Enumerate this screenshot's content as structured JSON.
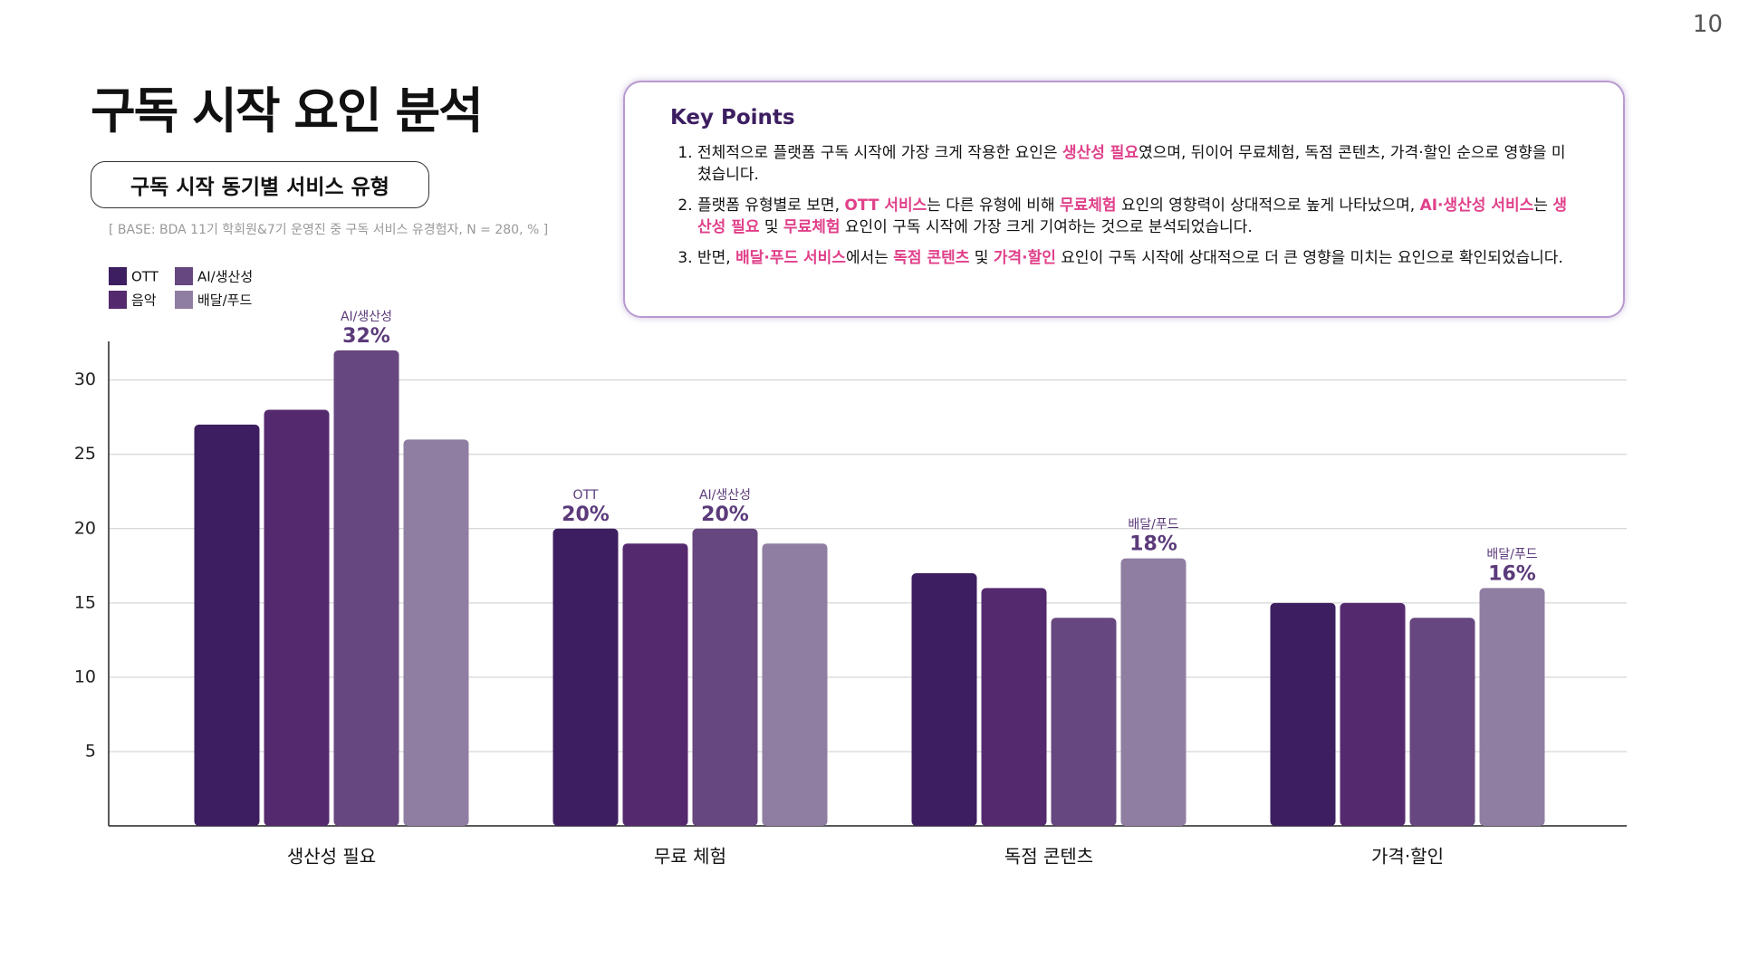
{
  "page_number": "10",
  "title": "구독 시작 요인 분석",
  "subtitle": "구독 시작 동기별 서비스 유형",
  "base_note": "[ BASE: BDA 11기 학회원&7기 운영진 중 구독 서비스 유경험자, N = 280, % ]",
  "key_points": {
    "title": "Key Points",
    "items": [
      [
        {
          "text": "전체적으로 플랫폼 구독 시작에 가장 크게 작용한 요인은 ",
          "highlight": false
        },
        {
          "text": "생산성 필요",
          "highlight": true
        },
        {
          "text": "였으며, 뒤이어 무료체험, 독점 콘텐츠, 가격·할인 순으로 영향을 미쳤습니다.",
          "highlight": false
        }
      ],
      [
        {
          "text": "플랫폼 유형별로 보면, ",
          "highlight": false
        },
        {
          "text": "OTT 서비스",
          "highlight": true
        },
        {
          "text": "는 다른 유형에 비해 ",
          "highlight": false
        },
        {
          "text": "무료체험",
          "highlight": true
        },
        {
          "text": " 요인의 영향력이 상대적으로 높게 나타났으며, ",
          "highlight": false
        },
        {
          "text": "AI·생산성 서비스",
          "highlight": true
        },
        {
          "text": "는 ",
          "highlight": false
        },
        {
          "text": "생산성 필요",
          "highlight": true
        },
        {
          "text": " 및 ",
          "highlight": false
        },
        {
          "text": "무료체험",
          "highlight": true
        },
        {
          "text": " 요인이 구독 시작에 가장 크게 기여하는 것으로 분석되었습니다.",
          "highlight": false
        }
      ],
      [
        {
          "text": "반면, ",
          "highlight": false
        },
        {
          "text": "배달·푸드 서비스",
          "highlight": true
        },
        {
          "text": "에서는 ",
          "highlight": false
        },
        {
          "text": "독점 콘텐츠",
          "highlight": true
        },
        {
          "text": " 및 ",
          "highlight": false
        },
        {
          "text": "가격·할인",
          "highlight": true
        },
        {
          "text": " 요인이 구독 시작에 상대적으로 더 큰 영향을 미치는 요인으로 확인되었습니다.",
          "highlight": false
        }
      ]
    ]
  },
  "chart_data": {
    "type": "bar",
    "categories": [
      "생산성 필요",
      "무료 체험",
      "독점 콘텐츠",
      "가격·할인"
    ],
    "series": [
      {
        "name": "OTT",
        "color": "#3d1e60",
        "values": [
          27,
          20,
          17,
          15
        ],
        "value_labels": [
          null,
          "20%",
          null,
          null
        ]
      },
      {
        "name": "음악",
        "color": "#55296e",
        "values": [
          28,
          19,
          16,
          15
        ],
        "value_labels": [
          null,
          null,
          null,
          null
        ]
      },
      {
        "name": "AI/생산성",
        "color": "#67477f",
        "values": [
          32,
          20,
          14,
          14
        ],
        "value_labels": [
          "32%",
          "20%",
          null,
          null
        ]
      },
      {
        "name": "배달/푸드",
        "color": "#907ea2",
        "values": [
          26,
          19,
          18,
          16
        ],
        "value_labels": [
          null,
          null,
          "18%",
          "16%"
        ]
      }
    ],
    "ylim": [
      0,
      32.6
    ],
    "yticks": [
      5,
      10,
      15,
      20,
      25,
      30
    ],
    "grid": true
  }
}
